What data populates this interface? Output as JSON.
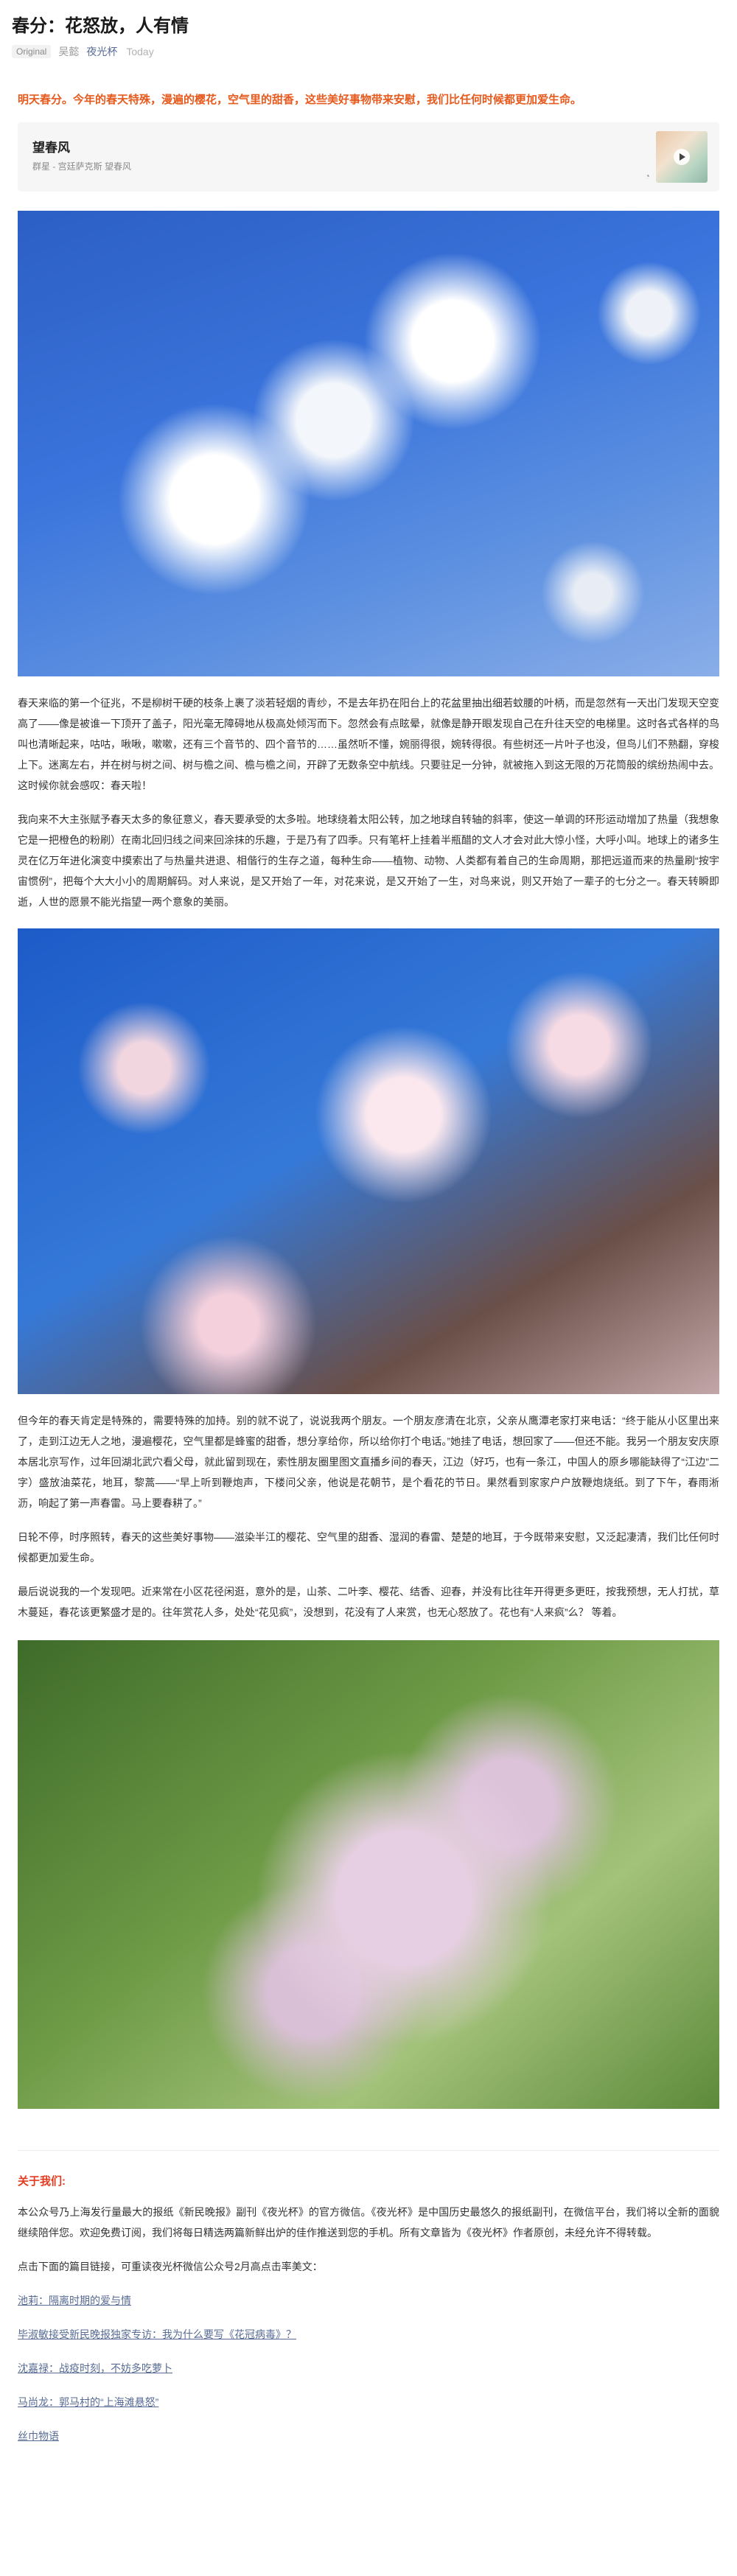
{
  "header": {
    "title": "春分：花怒放，人有情",
    "badge": "Original",
    "author": "吴懿",
    "account": "夜光杯",
    "date": "Today"
  },
  "intro": "明天春分。今年的春天特殊，漫遍的樱花，空气里的甜香，这些美好事物带来安慰，我们比任何时候都更加爱生命。",
  "audio_card": {
    "title": "望春风",
    "subtitle": "群星 - 宫廷萨克斯 望春风"
  },
  "paragraphs": [
    "春天来临的第一个征兆，不是柳树干硬的枝条上裹了淡若轻烟的青纱，不是去年扔在阳台上的花盆里抽出细若蚊腰的叶柄，而是忽然有一天出门发现天空变高了——像是被谁一下顶开了盖子，阳光毫无障碍地从极高处倾泻而下。忽然会有点眩晕，就像是静开眼发现自己在升往天空的电梯里。这时各式各样的鸟叫也清晰起来，咕咕，啾啾，嗽嗽，还有三个音节的、四个音节的……虽然听不懂，婉丽得很，婉转得很。有些树还一片叶子也没，但鸟儿们不熟翻，穿梭上下。迷离左右，并在树与树之间、树与檐之间、檐与檐之间，开辟了无数条空中航线。只要驻足一分钟，就被拖入到这无限的万花筒般的缤纷热闹中去。这时候你就会感叹：春天啦！",
    "我向来不大主张赋予春天太多的象征意义，春天要承受的太多啦。地球绕着太阳公转，加之地球自转轴的斜率，使这一单调的环形运动增加了热量（我想象它是一把橙色的粉刷）在南北回归线之间来回涂抹的乐趣，于是乃有了四季。只有笔杆上挂着半瓶醋的文人才会对此大惊小怪，大呼小叫。地球上的诸多生灵在亿万年进化演变中摸索出了与热量共进退、相偕行的生存之道，每种生命——植物、动物、人类都有着自己的生命周期，那把远道而来的热量刷“按宇宙惯例”，把每个大大小小的周期解码。对人来说，是又开始了一年，对花来说，是又开始了一生，对鸟来说，则又开始了一辈子的七分之一。春天转瞬即逝，人世的愿景不能光指望一两个意象的美丽。",
    "但今年的春天肯定是特殊的，需要特殊的加持。别的就不说了，说说我两个朋友。一个朋友彦清在北京，父亲从鹰潭老家打来电话：“终于能从小区里出来了，走到江边无人之地，漫遍樱花，空气里都是蜂蜜的甜香，想分享给你，所以给你打个电话。”她挂了电话，想回家了——但还不能。我另一个朋友安庆原本居北京写作，过年回湖北武穴看父母，就此留到现在，索性朋友圈里图文直播乡间的春天，江边（好巧，也有一条江，中国人的原乡哪能缺得了“江边”二字）盛放油菜花，地耳，黎蒿——“早上听到鞭炮声，下楼问父亲，他说是花朝节，是个看花的节日。果然看到家家户户放鞭炮烧纸。到了下午，春雨淅沥，响起了第一声春雷。马上要春耕了。”",
    "日轮不停，时序照转，春天的这些美好事物——滋染半江的樱花、空气里的甜香、湿润的春雷、楚楚的地耳，于今既带来安慰，又泛起凄清，我们比任何时候都更加爱生命。",
    "最后说说我的一个发现吧。近来常在小区花径闲逛，意外的是，山茶、二叶李、樱花、结香、迎春，并没有比往年开得更多更旺，按我预想，无人打扰，草木蔓延，春花该更繁盛才是的。往年赏花人多，处处“花见疯”，没想到，花没有了人来赏，也无心怒放了。花也有“人来疯”么？ 等着。"
  ],
  "footer": {
    "about_title": "关于我们:",
    "about_text": "本公众号乃上海发行量最大的报纸《新民晚报》副刊《夜光杯》的官方微信。《夜光杯》是中国历史最悠久的报纸副刊，在微信平台，我们将以全新的面貌继续陪伴您。欢迎免费订阅，我们将每日精选两篇新鲜出炉的佳作推送到您的手机。所有文章皆为《夜光杯》作者原创，未经允许不得转载。",
    "prompt": "点击下面的篇目链接，可重读夜光杯微信公众号2月高点击率美文：",
    "links": [
      "池莉：隔离时期的爱与情",
      "毕淑敏接受新民晚报独家专访：我为什么要写《花冠病毒》？",
      "沈嘉禄：战疫时刻，不妨多吃萝卜",
      "马尚龙：郭马村的“上海滩悬怒”",
      "丝巾物语"
    ]
  },
  "colors": {
    "accent_orange": "#e65a1e",
    "link_blue": "#576b95",
    "about_red": "#e23b1e"
  }
}
